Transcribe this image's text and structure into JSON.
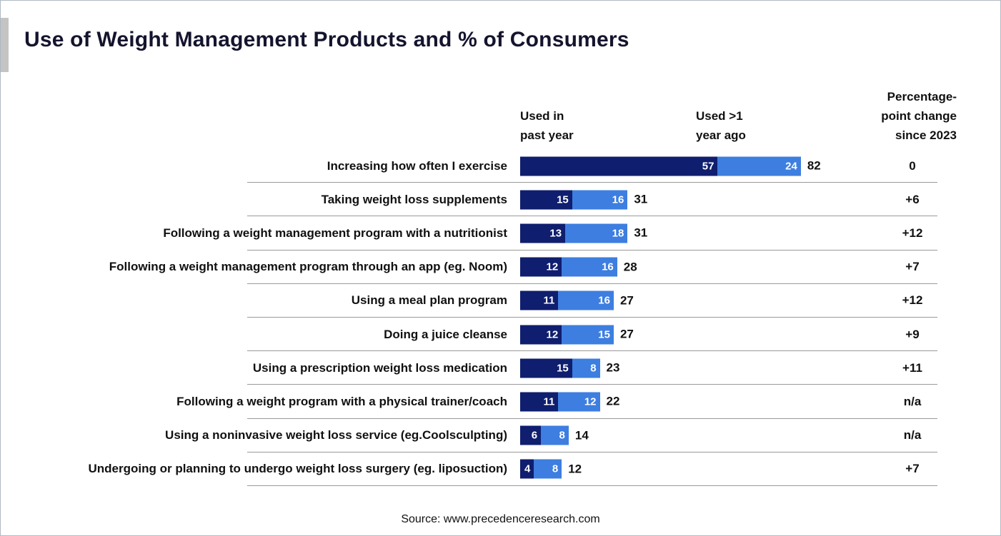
{
  "title": "Use of Weight Management Products and % of Consumers",
  "headers": {
    "past_year": "Used in\npast year",
    "year_ago": "Used >1\nyear ago",
    "change": "Percentage-\npoint change\nsince 2023"
  },
  "source": "Source: www.precedenceresearch.com",
  "colors": {
    "past_year_bar": "#0f1e6e",
    "year_ago_bar": "#3d7ee0",
    "title_text": "#14142e",
    "separator": "#9a9a9a"
  },
  "chart_data": {
    "type": "bar",
    "orientation": "horizontal",
    "stacked": true,
    "title": "Use of Weight Management Products and % of Consumers",
    "grid": false,
    "legend_position": "top",
    "categories": [
      "Increasing how often I exercise",
      "Taking weight loss supplements",
      "Following a weight management program with a nutritionist",
      "Following a weight management program through an app (eg. Noom)",
      "Using a meal plan program",
      "Doing a juice cleanse",
      "Using a prescription weight loss medication",
      "Following a weight program with a physical trainer/coach",
      "Using a noninvasive weight loss service (eg.Coolsculpting)",
      "Undergoing or planning to undergo weight loss surgery (eg. liposuction)"
    ],
    "series": [
      {
        "name": "Used in past year",
        "values": [
          57,
          15,
          13,
          12,
          11,
          12,
          15,
          11,
          6,
          4
        ]
      },
      {
        "name": "Used >1 year ago",
        "values": [
          24,
          16,
          18,
          16,
          16,
          15,
          8,
          12,
          8,
          8
        ]
      }
    ],
    "totals": [
      82,
      31,
      31,
      28,
      27,
      27,
      23,
      22,
      14,
      12
    ],
    "changes": [
      "0",
      "+6",
      "+12",
      "+7",
      "+12",
      "+9",
      "+11",
      "n/a",
      "n/a",
      "+7"
    ]
  }
}
